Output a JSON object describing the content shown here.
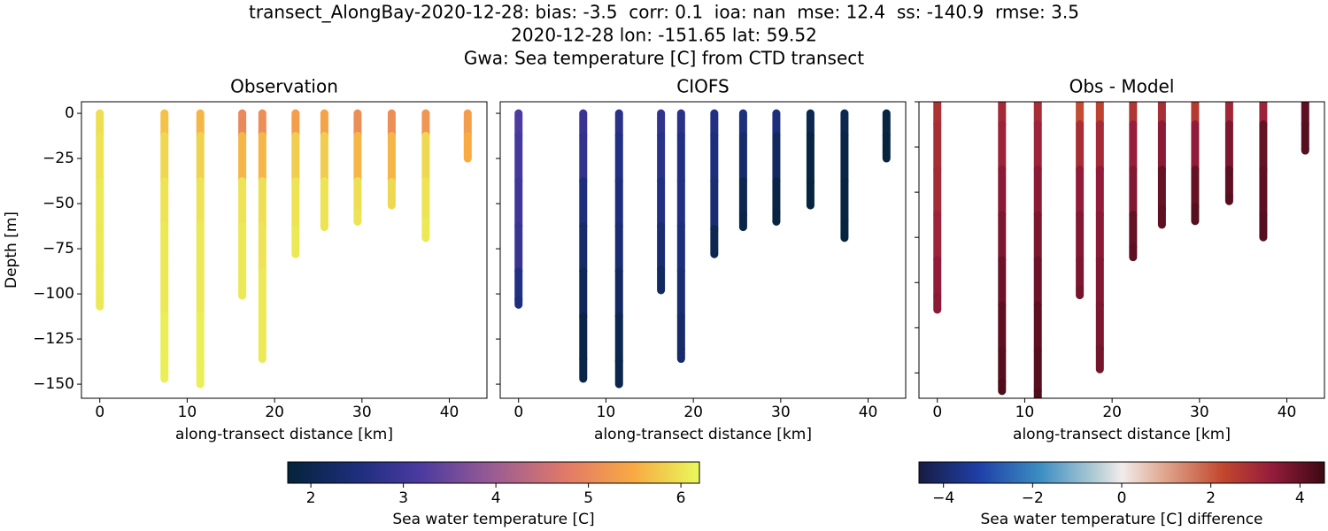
{
  "figure": {
    "title_lines": [
      "transect_AlongBay-2020-12-28: bias: -3.5  corr: 0.1  ioa: nan  mse: 12.4  ss: -140.9  rmse: 3.5",
      "2020-12-28 lon: -151.65 lat: 59.52",
      "Gwa: Sea temperature [C] from CTD transect"
    ]
  },
  "colorbars": [
    {
      "label": "Sea water temperature [C]",
      "lim": [
        1.75,
        6.2
      ],
      "ticks": [
        2,
        3,
        4,
        5,
        6
      ],
      "colormap": [
        [
          0,
          "#04233a"
        ],
        [
          0.18,
          "#1f2f80"
        ],
        [
          0.32,
          "#4b3aa0"
        ],
        [
          0.5,
          "#9a5c93"
        ],
        [
          0.68,
          "#e27a68"
        ],
        [
          0.84,
          "#f9a943"
        ],
        [
          1,
          "#e8fa5b"
        ]
      ]
    },
    {
      "label": "Sea water temperature [C] difference",
      "lim": [
        -4.55,
        4.55
      ],
      "ticks": [
        {
          "value": -4,
          "label": "−4"
        },
        {
          "value": -2,
          "label": "−2"
        },
        0,
        2,
        4
      ],
      "colormap": [
        [
          0,
          "#181c43"
        ],
        [
          0.15,
          "#1f40a8"
        ],
        [
          0.3,
          "#3d8ec3"
        ],
        [
          0.45,
          "#bfd3d8"
        ],
        [
          0.5,
          "#f1ecec"
        ],
        [
          0.6,
          "#e0aa92"
        ],
        [
          0.75,
          "#c2472e"
        ],
        [
          0.87,
          "#951c3b"
        ],
        [
          1,
          "#3c0912"
        ]
      ]
    }
  ],
  "chart_data": [
    {
      "type": "scatter",
      "title": "Observation",
      "xlabel": "along-transect distance [km]",
      "ylabel": "Depth [m]",
      "xlim": [
        -2.1,
        44.3
      ],
      "xticks": [
        0,
        10,
        20,
        30,
        40
      ],
      "ylim": [
        -157.8,
        6.4
      ],
      "yticks": [
        0,
        {
          "value": -25,
          "label": "−25"
        },
        {
          "value": -50,
          "label": "−50"
        },
        {
          "value": -75,
          "label": "−75"
        },
        {
          "value": -100,
          "label": "−100"
        },
        {
          "value": -125,
          "label": "−125"
        },
        {
          "value": -150,
          "label": "−150"
        }
      ],
      "ytick_labels": true,
      "colorbar": 0,
      "x": [
        0,
        7.4,
        11.5,
        16.3,
        18.6,
        22.4,
        25.7,
        29.5,
        33.4,
        37.3,
        42.1
      ],
      "profiles": [
        {
          "depth": [
            0,
            -25,
            -50,
            -75,
            -100,
            -107
          ],
          "values": [
            5.95,
            6.0,
            6.05,
            6.05,
            6.05,
            6.05
          ]
        },
        {
          "depth": [
            0,
            -25,
            -50,
            -75,
            -100,
            -125,
            -147
          ],
          "values": [
            5.7,
            5.9,
            6.0,
            6.05,
            6.05,
            6.1,
            6.1
          ]
        },
        {
          "depth": [
            0,
            -25,
            -50,
            -75,
            -100,
            -125,
            -150
          ],
          "values": [
            5.6,
            5.85,
            6.0,
            6.05,
            6.05,
            6.1,
            6.1
          ]
        },
        {
          "depth": [
            0,
            -25,
            -50,
            -75,
            -101
          ],
          "values": [
            5.0,
            5.6,
            6.0,
            6.05,
            6.05
          ]
        },
        {
          "depth": [
            0,
            -25,
            -50,
            -75,
            -100,
            -125,
            -136
          ],
          "values": [
            5.1,
            5.6,
            5.95,
            6.0,
            6.05,
            6.05,
            6.05
          ]
        },
        {
          "depth": [
            0,
            -25,
            -50,
            -78
          ],
          "values": [
            5.3,
            5.8,
            6.0,
            6.05
          ]
        },
        {
          "depth": [
            0,
            -25,
            -50,
            -63
          ],
          "values": [
            5.4,
            5.8,
            6.0,
            6.0
          ]
        },
        {
          "depth": [
            0,
            -25,
            -50,
            -60
          ],
          "values": [
            5.1,
            5.6,
            5.95,
            6.0
          ]
        },
        {
          "depth": [
            0,
            -25,
            -51
          ],
          "values": [
            5.1,
            5.6,
            5.9
          ]
        },
        {
          "depth": [
            0,
            -25,
            -50,
            -69
          ],
          "values": [
            5.2,
            5.9,
            6.0,
            6.05
          ]
        },
        {
          "depth": [
            0,
            -25
          ],
          "values": [
            5.3,
            5.5
          ]
        }
      ]
    },
    {
      "type": "scatter",
      "title": "CIOFS",
      "xlabel": "along-transect distance [km]",
      "xlim": [
        -2.1,
        44.3
      ],
      "xticks": [
        0,
        10,
        20,
        30,
        40
      ],
      "ylim": [
        -157.8,
        6.4
      ],
      "yticks": [
        0,
        -25,
        -50,
        -75,
        -100,
        -125,
        -150
      ],
      "ytick_labels": false,
      "colorbar": 0,
      "x": [
        0,
        7.4,
        11.5,
        16.3,
        18.6,
        22.4,
        25.7,
        29.5,
        33.4,
        37.3,
        42.1
      ],
      "profiles": [
        {
          "depth": [
            0,
            -25,
            -50,
            -75,
            -100,
            -106
          ],
          "values": [
            3.2,
            3.1,
            3.0,
            2.9,
            2.6,
            2.5
          ]
        },
        {
          "depth": [
            0,
            -25,
            -50,
            -75,
            -100,
            -125,
            -147
          ],
          "values": [
            2.9,
            2.8,
            2.5,
            2.3,
            2.1,
            1.9,
            1.9
          ]
        },
        {
          "depth": [
            0,
            -25,
            -50,
            -75,
            -100,
            -125,
            -150
          ],
          "values": [
            2.7,
            2.6,
            2.5,
            2.4,
            2.2,
            2.0,
            1.95
          ]
        },
        {
          "depth": [
            0,
            -25,
            -50,
            -75,
            -98
          ],
          "values": [
            2.8,
            2.7,
            2.6,
            2.4,
            2.2
          ]
        },
        {
          "depth": [
            0,
            -25,
            -50,
            -75,
            -100,
            -125,
            -136
          ],
          "values": [
            2.7,
            2.6,
            2.6,
            2.5,
            2.4,
            2.3,
            2.3
          ]
        },
        {
          "depth": [
            0,
            -25,
            -50,
            -78
          ],
          "values": [
            2.6,
            2.5,
            2.4,
            2.0
          ]
        },
        {
          "depth": [
            0,
            -25,
            -50,
            -63
          ],
          "values": [
            2.5,
            2.3,
            2.0,
            1.9
          ]
        },
        {
          "depth": [
            0,
            -25,
            -50,
            -60
          ],
          "values": [
            2.5,
            2.2,
            1.9,
            1.85
          ]
        },
        {
          "depth": [
            0,
            -25,
            -51
          ],
          "values": [
            2.0,
            1.85,
            1.8
          ]
        },
        {
          "depth": [
            0,
            -25,
            -50,
            -69
          ],
          "values": [
            2.0,
            1.9,
            1.85,
            1.8
          ]
        },
        {
          "depth": [
            0,
            -25
          ],
          "values": [
            1.85,
            1.8
          ]
        }
      ]
    },
    {
      "type": "scatter",
      "title": "Obs - Model",
      "xlabel": "along-transect distance [km]",
      "xlim": [
        -2.1,
        44.3
      ],
      "xticks": [
        0,
        10,
        20,
        30,
        40
      ],
      "ylim": [
        -164,
        0
      ],
      "yticks": [
        0,
        -25,
        -50,
        -75,
        -100,
        -125,
        -150
      ],
      "ytick_labels": false,
      "colorbar": 1,
      "x": [
        0,
        7.4,
        11.5,
        16.3,
        18.6,
        22.4,
        25.7,
        29.5,
        33.4,
        37.3,
        42.1
      ],
      "profiles": [
        {
          "depth": [
            0,
            -25,
            -50,
            -75,
            -100,
            -115
          ],
          "values": [
            2.8,
            2.9,
            3.0,
            3.2,
            3.4,
            3.5
          ]
        },
        {
          "depth": [
            0,
            -25,
            -50,
            -75,
            -100,
            -125,
            -150,
            -160
          ],
          "values": [
            3.0,
            3.2,
            3.5,
            3.7,
            3.9,
            4.1,
            4.2,
            4.3
          ]
        },
        {
          "depth": [
            0,
            -25,
            -50,
            -75,
            -100,
            -125,
            -150,
            -170
          ],
          "values": [
            2.9,
            3.2,
            3.5,
            3.7,
            3.9,
            4.1,
            4.2,
            4.3
          ]
        },
        {
          "depth": [
            0,
            -25,
            -50,
            -75,
            -100,
            -107
          ],
          "values": [
            2.2,
            2.9,
            3.4,
            3.6,
            3.7,
            3.8
          ]
        },
        {
          "depth": [
            0,
            -25,
            -50,
            -75,
            -100,
            -125,
            -148
          ],
          "values": [
            2.4,
            3.0,
            3.4,
            3.5,
            3.6,
            3.7,
            3.8
          ]
        },
        {
          "depth": [
            0,
            -25,
            -50,
            -75,
            -86
          ],
          "values": [
            2.7,
            3.3,
            3.6,
            4.0,
            4.1
          ]
        },
        {
          "depth": [
            0,
            -25,
            -50,
            -68
          ],
          "values": [
            2.9,
            3.5,
            4.0,
            4.1
          ]
        },
        {
          "depth": [
            0,
            -25,
            -50,
            -66
          ],
          "values": [
            2.6,
            3.4,
            4.0,
            4.2
          ]
        },
        {
          "depth": [
            0,
            -25,
            -50,
            -55
          ],
          "values": [
            3.1,
            3.7,
            4.1,
            4.2
          ]
        },
        {
          "depth": [
            0,
            -25,
            -50,
            -75
          ],
          "values": [
            3.2,
            4.0,
            4.1,
            4.2
          ]
        },
        {
          "depth": [
            0,
            -25,
            -27
          ],
          "values": [
            4.1,
            4.2,
            4.2
          ]
        }
      ]
    }
  ]
}
